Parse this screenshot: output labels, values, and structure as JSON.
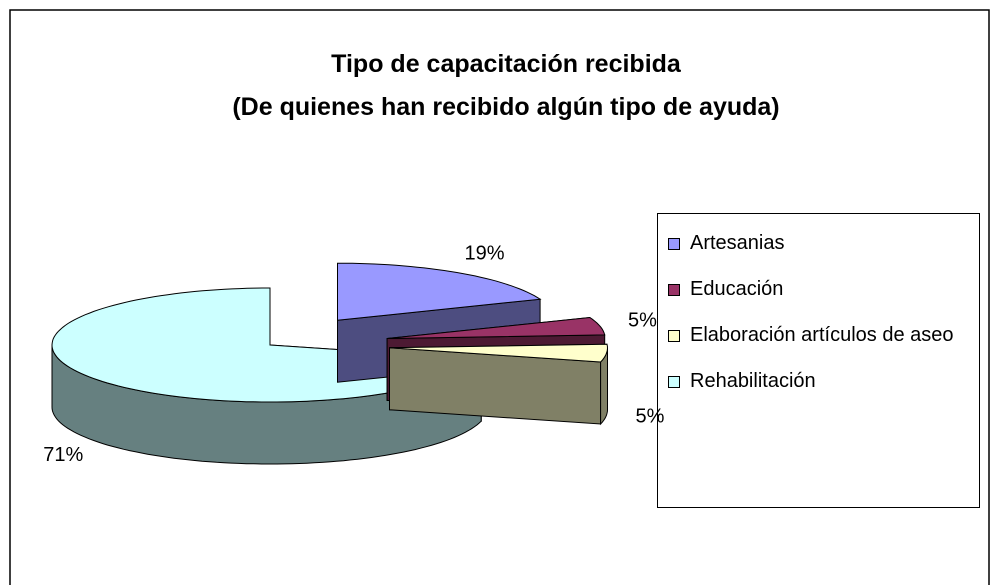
{
  "chart_data": {
    "type": "pie3d",
    "title": "Tipo de capacitación recibida",
    "subtitle": "(De quienes han recibido algún tipo de ayuda)",
    "categories": [
      "Artesanias",
      "Educación",
      "Elaboración artículos de aseo",
      "Rehabilitación"
    ],
    "values": [
      19,
      5,
      5,
      71
    ],
    "value_labels": [
      "19%",
      "5%",
      "5%",
      "71%"
    ],
    "colors": [
      "#9999ff",
      "#993366",
      "#ffffcc",
      "#ccffff"
    ],
    "legend": "right"
  }
}
